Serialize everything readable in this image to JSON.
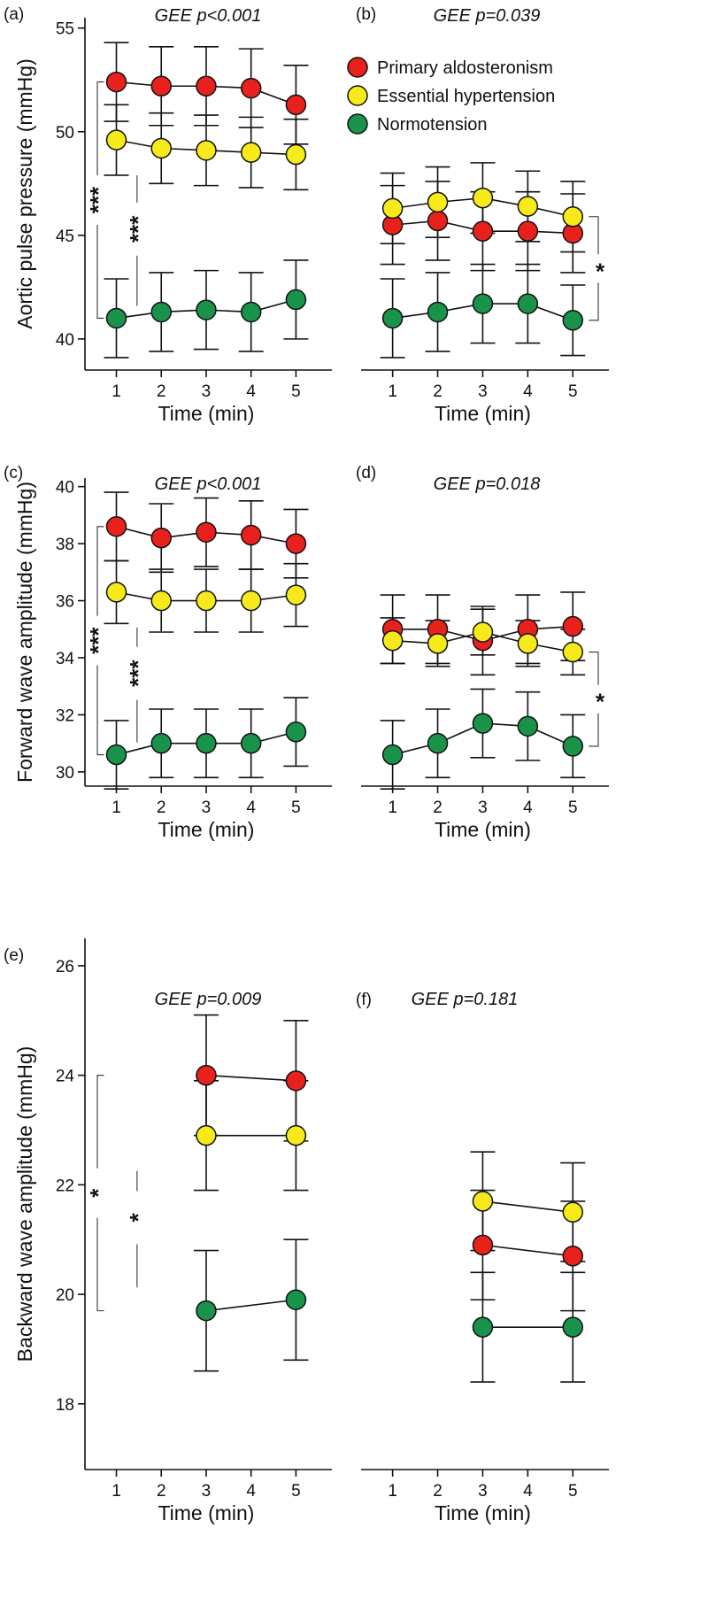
{
  "legend": [
    {
      "name": "Primary aldosteronism",
      "color": "#e8211d"
    },
    {
      "name": "Essential hypertension",
      "color": "#f6ea1a"
    },
    {
      "name": "Normotension",
      "color": "#19934a"
    }
  ],
  "chart_data": [
    {
      "type": "line",
      "panel": "(a)",
      "gee": "GEE p<0.001",
      "ylabel": "Aortic pulse pressure (mmHg)",
      "xlabel": "Time (min)",
      "ylim": [
        38.5,
        55.5
      ],
      "yticks": [
        40,
        45,
        50,
        55
      ],
      "xlim": [
        0.3,
        5.8
      ],
      "xticks": [
        1,
        2,
        3,
        4,
        5
      ],
      "series": [
        {
          "name": "Primary aldosteronism",
          "x": [
            1,
            2,
            3,
            4,
            5
          ],
          "values": [
            52.4,
            52.2,
            52.2,
            52.1,
            51.3
          ],
          "err": [
            1.9,
            1.9,
            1.9,
            1.9,
            1.9
          ]
        },
        {
          "name": "Essential hypertension",
          "x": [
            1,
            2,
            3,
            4,
            5
          ],
          "values": [
            49.6,
            49.2,
            49.1,
            49.0,
            48.9
          ],
          "err": [
            1.7,
            1.7,
            1.7,
            1.7,
            1.7
          ]
        },
        {
          "name": "Normotension",
          "x": [
            1,
            2,
            3,
            4,
            5
          ],
          "values": [
            41.0,
            41.3,
            41.4,
            41.3,
            41.9
          ],
          "err": [
            1.9,
            1.9,
            1.9,
            1.9,
            1.9
          ]
        }
      ],
      "significance": [
        {
          "label": "***",
          "from": 52.4,
          "to": 41.0
        },
        {
          "label": "***",
          "from": 49.6,
          "to": 41.0
        }
      ]
    },
    {
      "type": "line",
      "panel": "(b)",
      "gee": "GEE p=0.039",
      "ylabel": "",
      "xlabel": "Time (min)",
      "ylim": [
        38.5,
        55.5
      ],
      "yticks": [],
      "xlim": [
        0.3,
        5.8
      ],
      "xticks": [
        1,
        2,
        3,
        4,
        5
      ],
      "series": [
        {
          "name": "Primary aldosteronism",
          "x": [
            1,
            2,
            3,
            4,
            5
          ],
          "values": [
            45.5,
            45.7,
            45.2,
            45.2,
            45.1
          ],
          "err": [
            1.9,
            1.9,
            1.9,
            1.9,
            1.9
          ]
        },
        {
          "name": "Essential hypertension",
          "x": [
            1,
            2,
            3,
            4,
            5
          ],
          "values": [
            46.3,
            46.6,
            46.8,
            46.4,
            45.9
          ],
          "err": [
            1.7,
            1.7,
            1.7,
            1.7,
            1.7
          ]
        },
        {
          "name": "Normotension",
          "x": [
            1,
            2,
            3,
            4,
            5
          ],
          "values": [
            41.0,
            41.3,
            41.7,
            41.7,
            40.9
          ],
          "err": [
            1.9,
            1.9,
            1.9,
            1.9,
            1.7
          ]
        }
      ],
      "significance": [
        {
          "label": "*",
          "from": 45.9,
          "to": 40.9
        }
      ]
    },
    {
      "type": "line",
      "panel": "(c)",
      "gee": "GEE p<0.001",
      "ylabel": "Forward wave amplitude (mmHg)",
      "xlabel": "Time (min)",
      "ylim": [
        29.5,
        40.3
      ],
      "yticks": [
        30,
        32,
        34,
        36,
        38,
        40
      ],
      "xlim": [
        0.3,
        5.8
      ],
      "xticks": [
        1,
        2,
        3,
        4,
        5
      ],
      "series": [
        {
          "name": "Primary aldosteronism",
          "x": [
            1,
            2,
            3,
            4,
            5
          ],
          "values": [
            38.6,
            38.2,
            38.4,
            38.3,
            38.0
          ],
          "err": [
            1.2,
            1.2,
            1.2,
            1.2,
            1.2
          ]
        },
        {
          "name": "Essential hypertension",
          "x": [
            1,
            2,
            3,
            4,
            5
          ],
          "values": [
            36.3,
            36.0,
            36.0,
            36.0,
            36.2
          ],
          "err": [
            1.1,
            1.1,
            1.1,
            1.1,
            1.1
          ]
        },
        {
          "name": "Normotension",
          "x": [
            1,
            2,
            3,
            4,
            5
          ],
          "values": [
            30.6,
            31.0,
            31.0,
            31.0,
            31.4
          ],
          "err": [
            1.2,
            1.2,
            1.2,
            1.2,
            1.2
          ]
        }
      ],
      "significance": [
        {
          "label": "***",
          "from": 38.6,
          "to": 30.6
        },
        {
          "label": "***",
          "from": 36.3,
          "to": 30.6
        }
      ]
    },
    {
      "type": "line",
      "panel": "(d)",
      "gee": "GEE p=0.018",
      "ylabel": "",
      "xlabel": "Time (min)",
      "ylim": [
        29.5,
        40.3
      ],
      "yticks": [],
      "xlim": [
        0.3,
        5.8
      ],
      "xticks": [
        1,
        2,
        3,
        4,
        5
      ],
      "series": [
        {
          "name": "Primary aldosteronism",
          "x": [
            1,
            2,
            3,
            4,
            5
          ],
          "values": [
            35.0,
            35.0,
            34.6,
            35.0,
            35.1
          ],
          "err": [
            1.2,
            1.2,
            1.2,
            1.2,
            1.2
          ]
        },
        {
          "name": "Essential hypertension",
          "x": [
            1,
            2,
            3,
            4,
            5
          ],
          "values": [
            34.6,
            34.5,
            34.9,
            34.5,
            34.2
          ],
          "err": [
            0.8,
            0.8,
            0.8,
            0.8,
            0.8
          ]
        },
        {
          "name": "Normotension",
          "x": [
            1,
            2,
            3,
            4,
            5
          ],
          "values": [
            30.6,
            31.0,
            31.7,
            31.6,
            30.9
          ],
          "err": [
            1.2,
            1.2,
            1.2,
            1.2,
            1.1
          ]
        }
      ],
      "significance": [
        {
          "label": "*",
          "from": 34.2,
          "to": 30.9
        }
      ]
    },
    {
      "type": "line",
      "panel": "(e)",
      "gee": "GEE p=0.009",
      "ylabel": "Backward wave amplitude (mmHg)",
      "xlabel": "Time (min)",
      "ylim": [
        16.8,
        26.5
      ],
      "yticks": [
        18,
        20,
        22,
        24,
        26
      ],
      "xlim": [
        0.3,
        5.8
      ],
      "xticks": [
        1,
        2,
        3,
        4,
        5
      ],
      "series": [
        {
          "name": "Primary aldosteronism",
          "x": [
            3,
            5
          ],
          "values": [
            24.0,
            23.9
          ],
          "err": [
            1.1,
            1.1
          ]
        },
        {
          "name": "Essential hypertension",
          "x": [
            3,
            5
          ],
          "values": [
            22.9,
            22.9
          ],
          "err": [
            1.0,
            1.0
          ]
        },
        {
          "name": "Normotension",
          "x": [
            3,
            5
          ],
          "values": [
            19.7,
            19.9
          ],
          "err": [
            1.1,
            1.1
          ]
        }
      ],
      "significance": [
        {
          "label": "*",
          "from": 24.0,
          "to": 19.7
        },
        {
          "label": "*",
          "from": 22.9,
          "to": 19.9
        }
      ]
    },
    {
      "type": "line",
      "panel": "(f)",
      "gee": "GEE p=0.181",
      "ylabel": "",
      "xlabel": "Time (min)",
      "ylim": [
        16.8,
        26.5
      ],
      "yticks": [],
      "xlim": [
        0.3,
        5.8
      ],
      "xticks": [
        1,
        2,
        3,
        4,
        5
      ],
      "series": [
        {
          "name": "Primary aldosteronism",
          "x": [
            3,
            5
          ],
          "values": [
            20.9,
            20.7
          ],
          "err": [
            1.0,
            1.0
          ]
        },
        {
          "name": "Essential hypertension",
          "x": [
            3,
            5
          ],
          "values": [
            21.7,
            21.5
          ],
          "err": [
            0.9,
            0.9
          ]
        },
        {
          "name": "Normotension",
          "x": [
            3,
            5
          ],
          "values": [
            19.4,
            19.4
          ],
          "err": [
            1.0,
            1.0
          ]
        }
      ],
      "significance": []
    }
  ]
}
